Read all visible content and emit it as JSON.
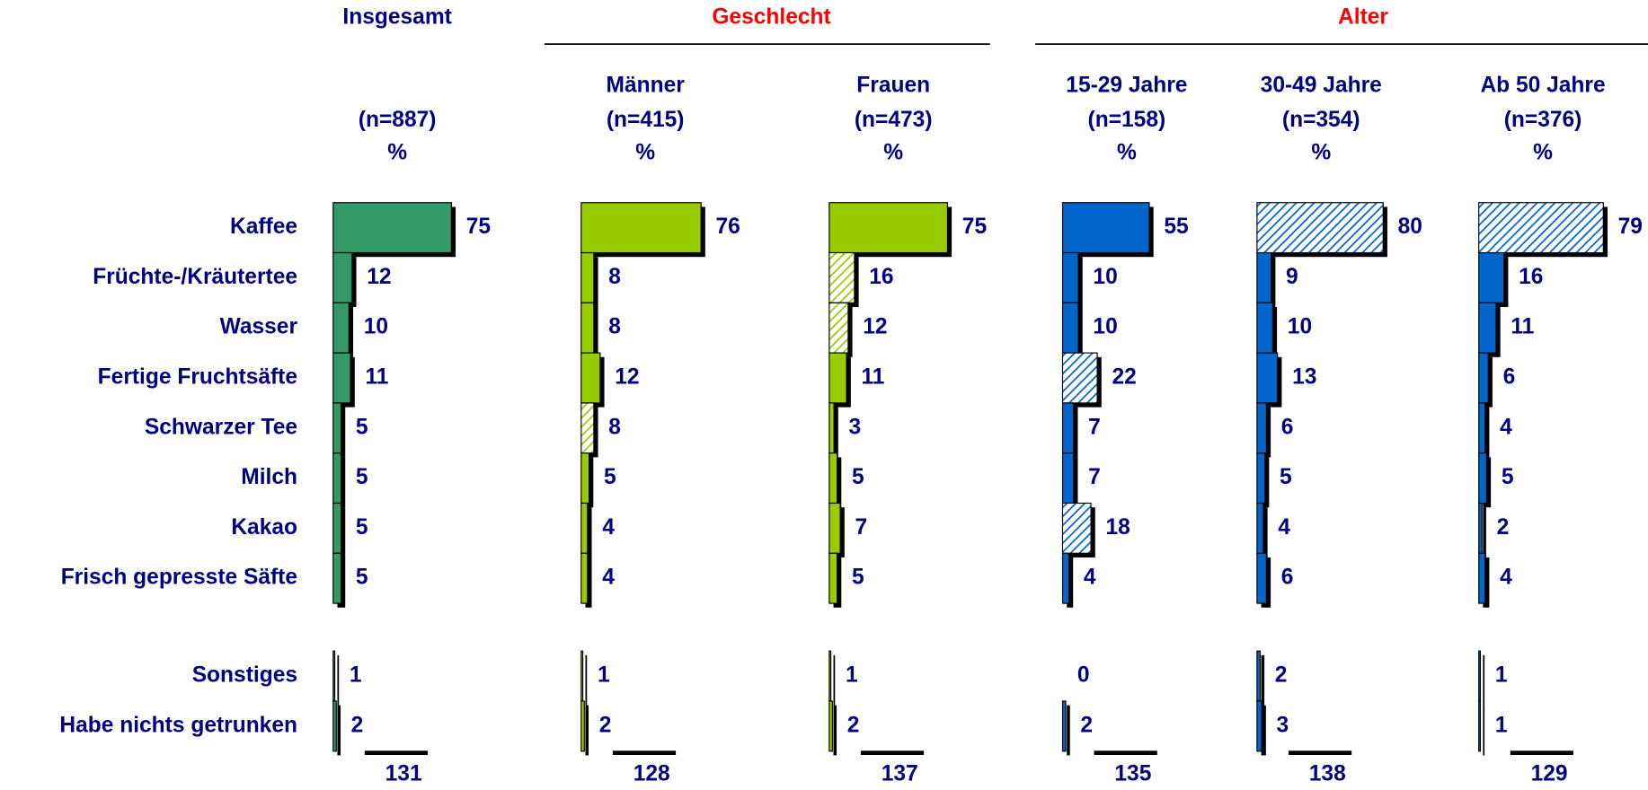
{
  "chart_data": {
    "type": "bar",
    "orientation": "horizontal",
    "unit": "%",
    "categories": [
      "Kaffee",
      "Früchte-/Kräutertee",
      "Wasser",
      "Fertige Fruchtsäfte",
      "Schwarzer Tee",
      "Milch",
      "Kakao",
      "Frisch gepresste Säfte",
      "Sonstiges",
      "Habe nichts getrunken"
    ],
    "panels": [
      {
        "title": "Insgesamt",
        "title_color": "#000080",
        "series": [
          {
            "n": "(n=887)",
            "color": "#339966",
            "values": [
              75,
              12,
              10,
              11,
              5,
              5,
              5,
              5,
              1,
              2
            ],
            "highlight": [
              false,
              false,
              false,
              false,
              false,
              false,
              false,
              false,
              false,
              false
            ],
            "total": 131
          }
        ]
      },
      {
        "title": "Geschlecht",
        "title_color": "#ff0000",
        "series": [
          {
            "name": "Männer",
            "n": "(n=415)",
            "color": "#99cc00",
            "values": [
              76,
              8,
              8,
              12,
              8,
              5,
              4,
              4,
              1,
              2
            ],
            "highlight": [
              false,
              false,
              false,
              false,
              true,
              false,
              false,
              false,
              false,
              false
            ],
            "total": 128
          },
          {
            "name": "Frauen",
            "n": "(n=473)",
            "color": "#99cc00",
            "values": [
              75,
              16,
              12,
              11,
              3,
              5,
              7,
              5,
              1,
              2
            ],
            "highlight": [
              false,
              true,
              true,
              false,
              false,
              false,
              false,
              false,
              false,
              false
            ],
            "total": 137
          }
        ]
      },
      {
        "title": "Alter",
        "title_color": "#ff0000",
        "series": [
          {
            "name": "15-29 Jahre",
            "n": "(n=158)",
            "color": "#0066cc",
            "values": [
              55,
              10,
              10,
              22,
              7,
              7,
              18,
              4,
              0,
              2
            ],
            "highlight": [
              false,
              false,
              false,
              true,
              false,
              false,
              true,
              false,
              false,
              false
            ],
            "total": 135
          },
          {
            "name": "30-49 Jahre",
            "n": "(n=354)",
            "color": "#0066cc",
            "values": [
              80,
              9,
              10,
              13,
              6,
              5,
              4,
              6,
              2,
              3
            ],
            "highlight": [
              true,
              false,
              false,
              false,
              false,
              false,
              false,
              false,
              false,
              false
            ],
            "total": 138
          },
          {
            "name": "Ab 50 Jahre",
            "n": "(n=376)",
            "color": "#0066cc",
            "values": [
              79,
              16,
              11,
              6,
              4,
              5,
              2,
              4,
              1,
              1
            ],
            "highlight": [
              true,
              false,
              false,
              false,
              false,
              false,
              false,
              false,
              false,
              false
            ],
            "total": 129
          }
        ]
      }
    ]
  }
}
